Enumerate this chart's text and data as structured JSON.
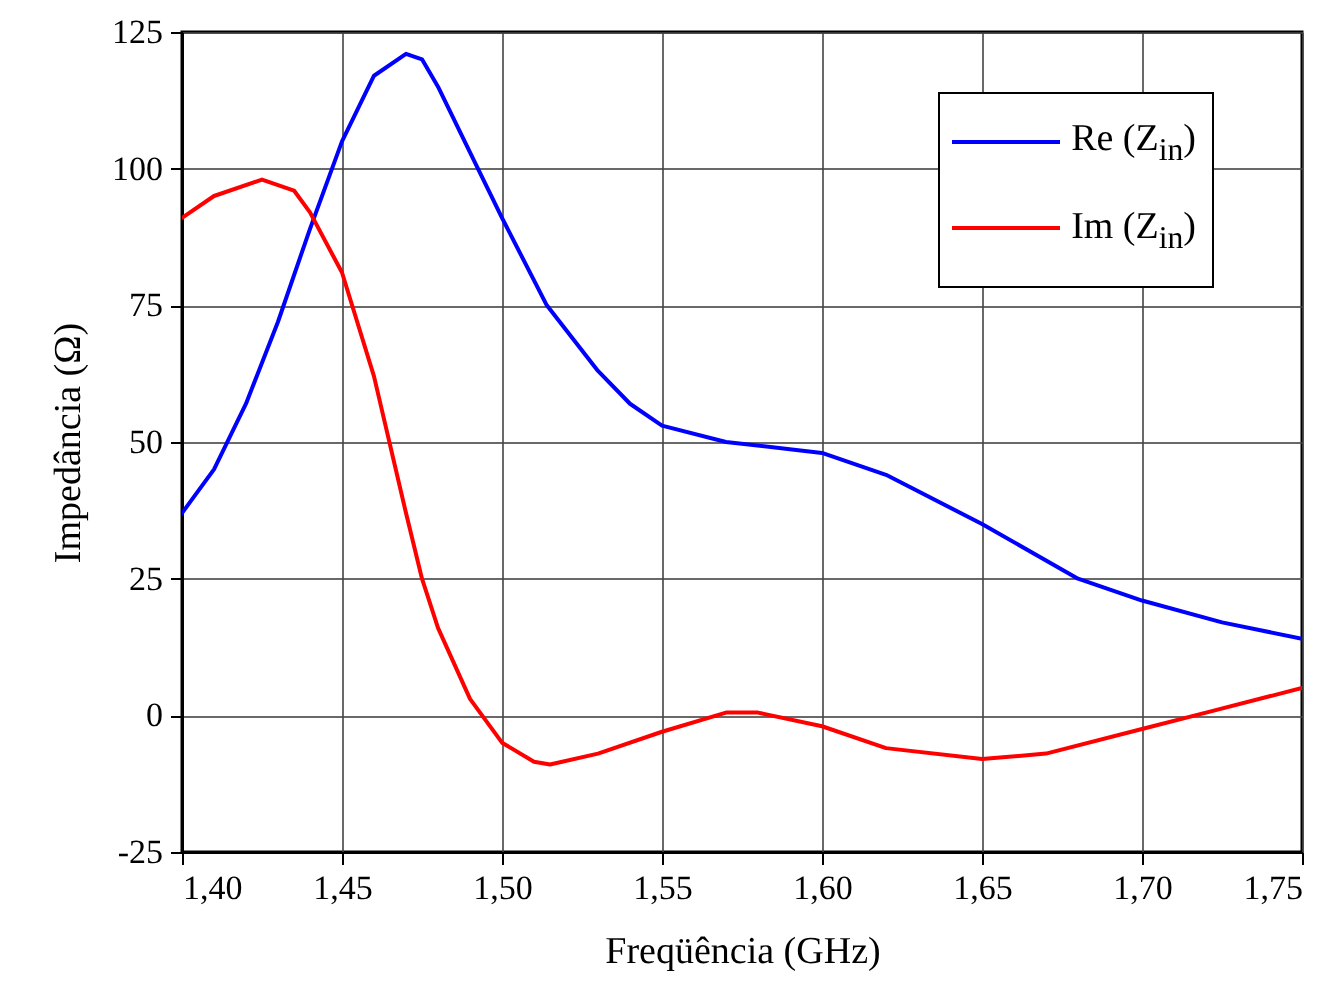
{
  "chart_data": {
    "type": "line",
    "xlabel": "Freqüência (GHz)",
    "ylabel": "Impedância (Ω)",
    "xlim": [
      1.4,
      1.75
    ],
    "ylim": [
      -25,
      125
    ],
    "xticks": [
      {
        "value": 1.4,
        "label": "1,40"
      },
      {
        "value": 1.45,
        "label": "1,45"
      },
      {
        "value": 1.5,
        "label": "1,50"
      },
      {
        "value": 1.55,
        "label": "1,55"
      },
      {
        "value": 1.6,
        "label": "1,60"
      },
      {
        "value": 1.65,
        "label": "1,65"
      },
      {
        "value": 1.7,
        "label": "1,70"
      },
      {
        "value": 1.75,
        "label": "1,75"
      }
    ],
    "yticks": [
      -25,
      0,
      25,
      50,
      75,
      100,
      125
    ],
    "grid": true,
    "legend": "top right",
    "line_style": "solid",
    "series": [
      {
        "name": "Re (Z$_{in}$)",
        "color": "#0000ff",
        "x": [
          1.4,
          1.41,
          1.42,
          1.43,
          1.44,
          1.45,
          1.46,
          1.47,
          1.475,
          1.48,
          1.49,
          1.5,
          1.514,
          1.53,
          1.54,
          1.55,
          1.57,
          1.6,
          1.62,
          1.65,
          1.68,
          1.7,
          1.725,
          1.75
        ],
        "values": [
          37,
          45,
          57,
          72,
          89,
          105,
          117,
          121,
          120,
          115,
          103,
          91,
          75,
          63,
          57,
          53,
          50,
          48,
          44,
          35,
          25,
          21,
          17,
          14
        ]
      },
      {
        "name": "Im (Z$_{in}$)",
        "color": "#ff0000",
        "x": [
          1.4,
          1.41,
          1.425,
          1.435,
          1.44,
          1.45,
          1.46,
          1.47,
          1.475,
          1.48,
          1.49,
          1.5,
          1.51,
          1.515,
          1.53,
          1.55,
          1.57,
          1.58,
          1.6,
          1.62,
          1.65,
          1.67,
          1.7,
          1.72,
          1.75
        ],
        "values": [
          91,
          95,
          98,
          96,
          92,
          81,
          62,
          37,
          25,
          16,
          3,
          -5,
          -8.5,
          -9,
          -7,
          -3,
          0.5,
          0.5,
          -2,
          -6,
          -8,
          -7,
          -2.5,
          0.5,
          5
        ]
      }
    ]
  }
}
